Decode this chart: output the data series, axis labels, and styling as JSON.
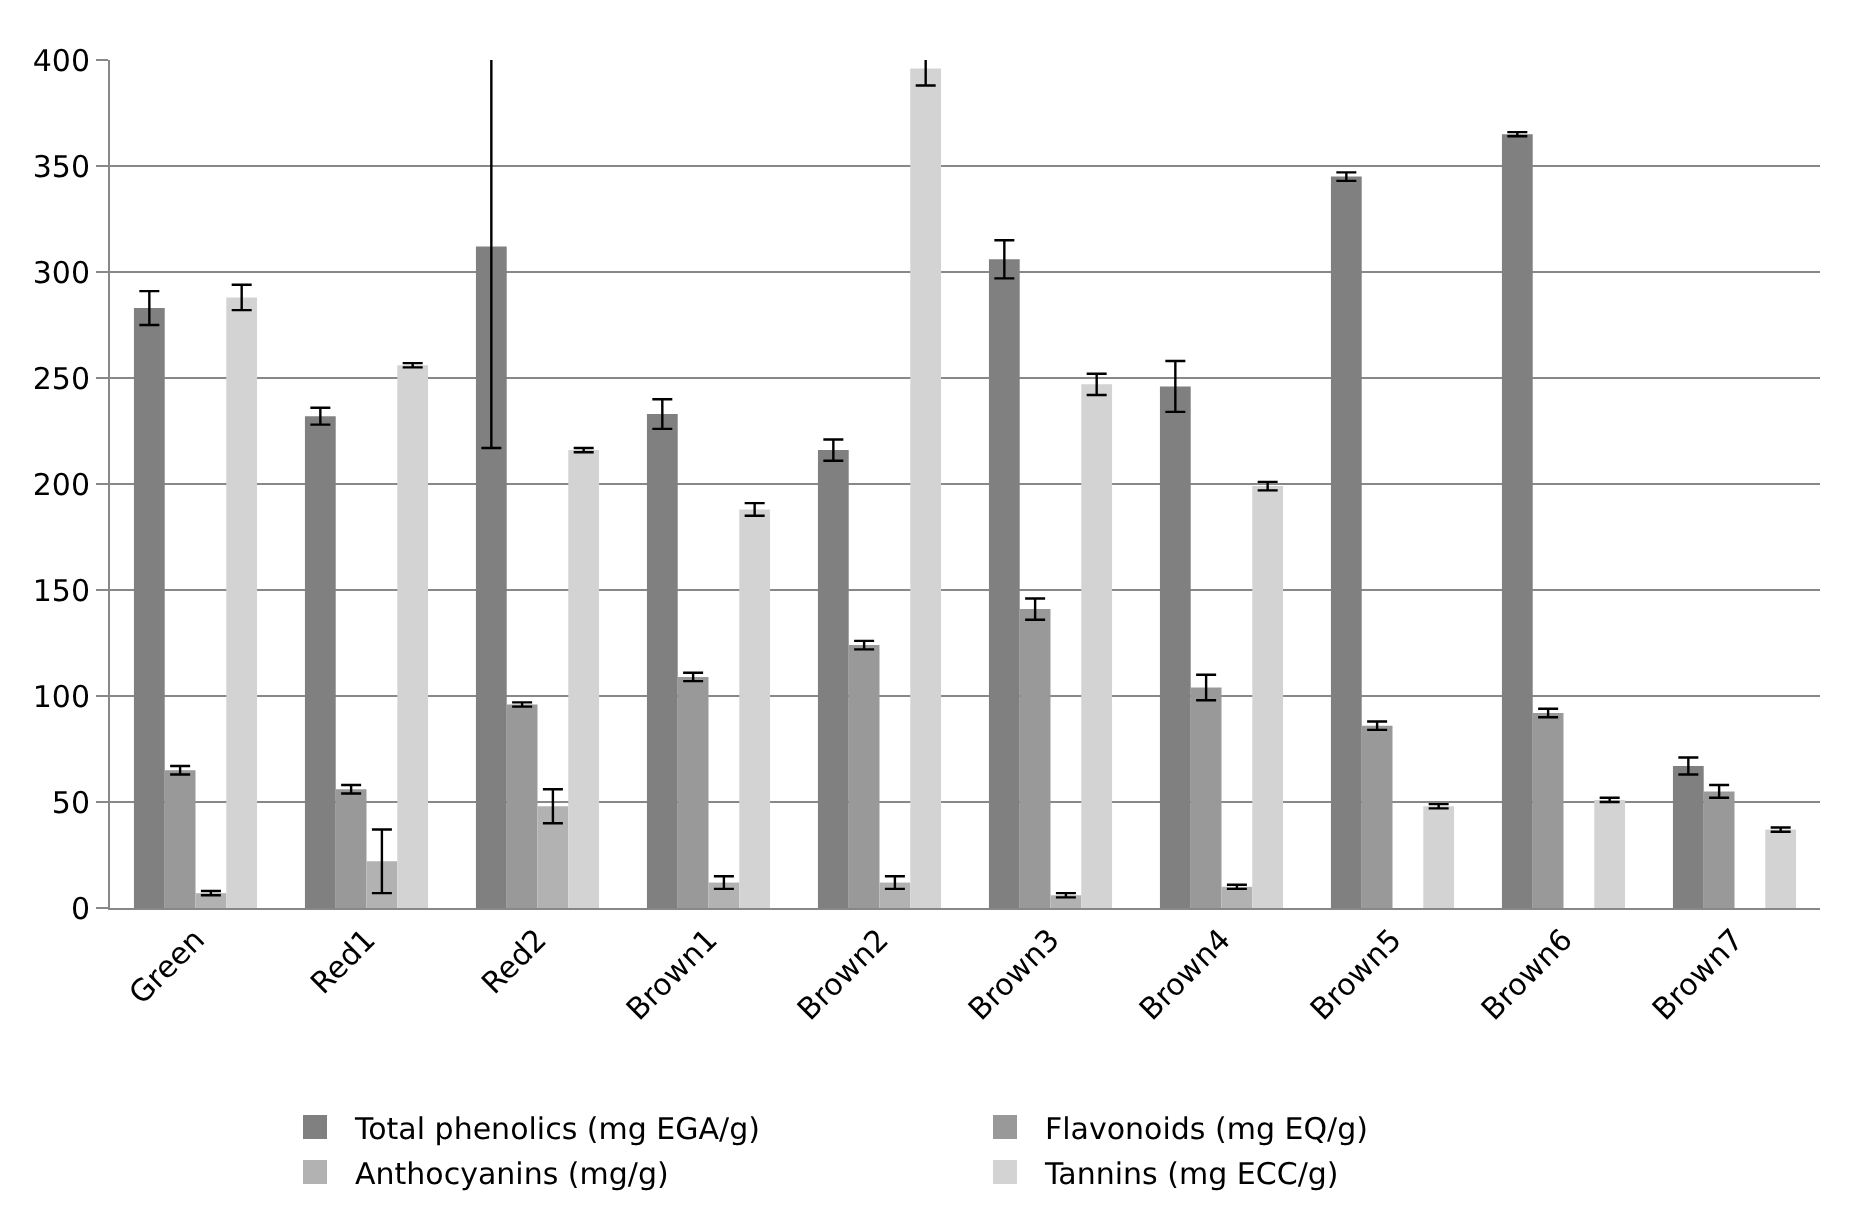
{
  "chart_data": {
    "type": "bar",
    "categories": [
      "Green",
      "Red1",
      "Red2",
      "Brown1",
      "Brown2",
      "Brown3",
      "Brown4",
      "Brown5",
      "Brown6",
      "Brown7"
    ],
    "series": [
      {
        "name": "Total phenolics (mg EGA/g)",
        "color": "#808080",
        "values": [
          283,
          232,
          312,
          233,
          216,
          306,
          246,
          345,
          365,
          67
        ],
        "errors": [
          8,
          4,
          95,
          7,
          5,
          9,
          12,
          2,
          1,
          4
        ]
      },
      {
        "name": "Flavonoids (mg EQ/g)",
        "color": "#999999",
        "values": [
          65,
          56,
          96,
          109,
          124,
          141,
          104,
          86,
          92,
          55
        ],
        "errors": [
          2,
          2,
          1,
          2,
          2,
          5,
          6,
          2,
          2,
          3
        ]
      },
      {
        "name": "Anthocyanins (mg/g)",
        "color": "#b2b2b2",
        "values": [
          7,
          22,
          48,
          12,
          12,
          6,
          10,
          null,
          null,
          null
        ],
        "errors": [
          1,
          15,
          8,
          3,
          3,
          1,
          1,
          null,
          null,
          null
        ]
      },
      {
        "name": "Tannins (mg ECC/g)",
        "color": "#d3d3d3",
        "values": [
          288,
          256,
          216,
          188,
          396,
          247,
          199,
          48,
          51,
          37
        ],
        "errors": [
          6,
          1,
          1,
          3,
          8,
          5,
          2,
          1,
          1,
          1
        ]
      }
    ],
    "ylim": [
      0,
      400
    ],
    "yticks": [
      0,
      50,
      100,
      150,
      200,
      250,
      300,
      350,
      400
    ],
    "grid": "y",
    "legend": "bottom"
  }
}
